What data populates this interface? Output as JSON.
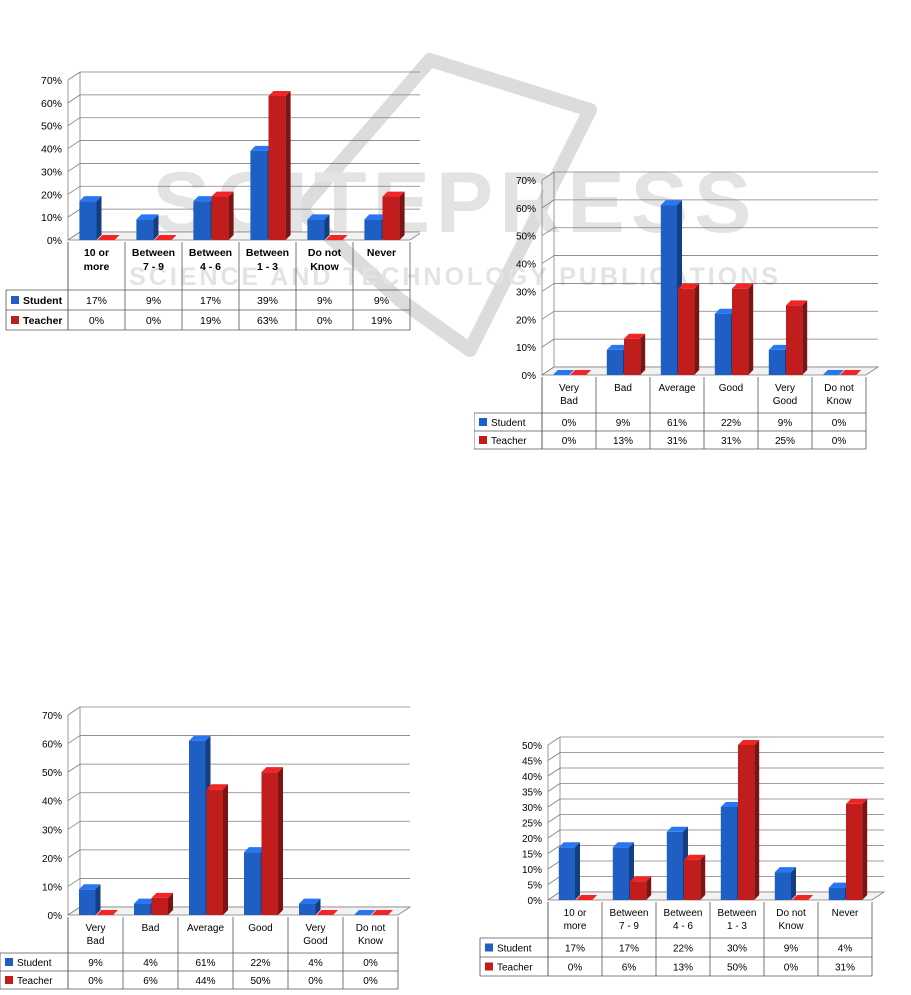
{
  "watermark": {
    "main_text": "SCITEPRESS",
    "sub_text": "SCIENCE AND TECHNOLOGY PUBLICATIONS"
  },
  "colors": {
    "student": "#1f5fc4",
    "teacher": "#c21d1d",
    "grid": "#7f7f7f",
    "axis_text": "#000000"
  },
  "chart_data": [
    {
      "type": "bar",
      "title": "",
      "ylim": [
        0,
        70
      ],
      "yticks": [
        "0%",
        "10%",
        "20%",
        "30%",
        "40%",
        "50%",
        "60%",
        "70%"
      ],
      "categories": [
        "10 or more",
        "Between 7 - 9",
        "Between 4 - 6",
        "Between 1 - 3",
        "Do not Know",
        "Never"
      ],
      "series": [
        {
          "name": "Student",
          "values": [
            17,
            9,
            17,
            39,
            9,
            9
          ],
          "labels": [
            "17%",
            "9%",
            "17%",
            "39%",
            "9%",
            "9%"
          ]
        },
        {
          "name": "Teacher",
          "values": [
            0,
            0,
            19,
            63,
            0,
            19
          ],
          "labels": [
            "0%",
            "0%",
            "19%",
            "63%",
            "0%",
            "19%"
          ]
        }
      ]
    },
    {
      "type": "bar",
      "title": "",
      "ylim": [
        0,
        70
      ],
      "yticks": [
        "0%",
        "10%",
        "20%",
        "30%",
        "40%",
        "50%",
        "60%",
        "70%"
      ],
      "categories": [
        "Very Bad",
        "Bad",
        "Average",
        "Good",
        "Very Good",
        "Do not Know"
      ],
      "series": [
        {
          "name": "Student",
          "values": [
            0,
            9,
            61,
            22,
            9,
            0
          ],
          "labels": [
            "0%",
            "9%",
            "61%",
            "22%",
            "9%",
            "0%"
          ]
        },
        {
          "name": "Teacher",
          "values": [
            0,
            13,
            31,
            31,
            25,
            0
          ],
          "labels": [
            "0%",
            "13%",
            "31%",
            "31%",
            "25%",
            "0%"
          ]
        }
      ]
    },
    {
      "type": "bar",
      "title": "",
      "ylim": [
        0,
        70
      ],
      "yticks": [
        "0%",
        "10%",
        "20%",
        "30%",
        "40%",
        "50%",
        "60%",
        "70%"
      ],
      "categories": [
        "Very Bad",
        "Bad",
        "Average",
        "Good",
        "Very Good",
        "Do not Know"
      ],
      "series": [
        {
          "name": "Student",
          "values": [
            9,
            4,
            61,
            22,
            4,
            0
          ],
          "labels": [
            "9%",
            "4%",
            "61%",
            "22%",
            "4%",
            "0%"
          ]
        },
        {
          "name": "Teacher",
          "values": [
            0,
            6,
            44,
            50,
            0,
            0
          ],
          "labels": [
            "0%",
            "6%",
            "44%",
            "50%",
            "0%",
            "0%"
          ]
        }
      ]
    },
    {
      "type": "bar",
      "title": "",
      "ylim": [
        0,
        50
      ],
      "yticks": [
        "0%",
        "5%",
        "10%",
        "15%",
        "20%",
        "25%",
        "30%",
        "35%",
        "40%",
        "45%",
        "50%"
      ],
      "categories": [
        "10 or more",
        "Between 7 - 9",
        "Between 4 - 6",
        "Between 1 - 3",
        "Do not Know",
        "Never"
      ],
      "series": [
        {
          "name": "Student",
          "values": [
            17,
            17,
            22,
            30,
            9,
            4
          ],
          "labels": [
            "17%",
            "17%",
            "22%",
            "30%",
            "9%",
            "4%"
          ]
        },
        {
          "name": "Teacher",
          "values": [
            0,
            6,
            13,
            50,
            0,
            31
          ],
          "labels": [
            "0%",
            "6%",
            "13%",
            "50%",
            "0%",
            "31%"
          ]
        }
      ]
    }
  ]
}
